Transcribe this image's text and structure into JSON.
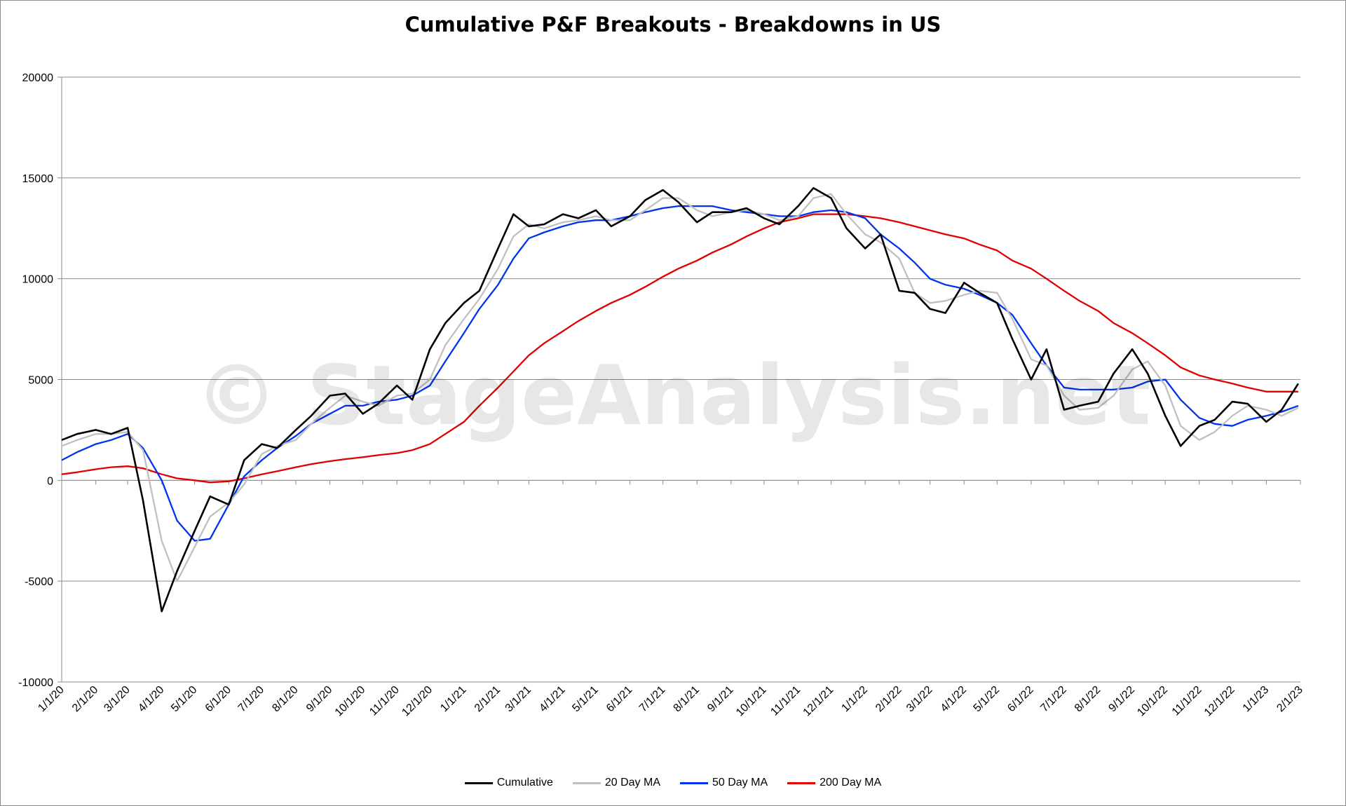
{
  "chart_data": {
    "type": "line",
    "title": "Cumulative P&F Breakouts - Breakdowns in US",
    "xlabel": "",
    "ylabel": "",
    "ylim": [
      -10000,
      20000
    ],
    "y_ticks": [
      -10000,
      -5000,
      0,
      5000,
      10000,
      15000,
      20000
    ],
    "y_tick_labels": [
      "-10000",
      "-5000",
      "0",
      "5000",
      "10000",
      "15000",
      "20000"
    ],
    "x_tick_labels": [
      "1/1/20",
      "2/1/20",
      "3/1/20",
      "4/1/20",
      "5/1/20",
      "6/1/20",
      "7/1/20",
      "8/1/20",
      "9/1/20",
      "10/1/20",
      "11/1/20",
      "12/1/20",
      "1/1/21",
      "2/1/21",
      "3/1/21",
      "4/1/21",
      "5/1/21",
      "6/1/21",
      "7/1/21",
      "8/1/21",
      "9/1/21",
      "10/1/21",
      "11/1/21",
      "12/1/21",
      "1/1/22",
      "2/1/22",
      "3/1/22",
      "4/1/22",
      "5/1/22",
      "6/1/22",
      "7/1/22",
      "8/1/22",
      "9/1/22",
      "10/1/22",
      "11/1/22",
      "12/1/22",
      "1/1/23",
      "2/1/23"
    ],
    "x": [
      "1/1/20",
      "1/15/20",
      "2/1/20",
      "2/15/20",
      "3/1/20",
      "3/15/20",
      "4/1/20",
      "4/15/20",
      "5/1/20",
      "5/15/20",
      "6/1/20",
      "6/15/20",
      "7/1/20",
      "7/15/20",
      "8/1/20",
      "8/15/20",
      "9/1/20",
      "9/15/20",
      "10/1/20",
      "10/15/20",
      "11/1/20",
      "11/15/20",
      "12/1/20",
      "12/15/20",
      "1/1/21",
      "1/15/21",
      "2/1/21",
      "2/15/21",
      "3/1/21",
      "3/15/21",
      "4/1/21",
      "4/15/21",
      "5/1/21",
      "5/15/21",
      "6/1/21",
      "6/15/21",
      "7/1/21",
      "7/15/21",
      "8/1/21",
      "8/15/21",
      "9/1/21",
      "9/15/21",
      "10/1/21",
      "10/15/21",
      "11/1/21",
      "11/15/21",
      "12/1/21",
      "12/15/21",
      "1/1/22",
      "1/15/22",
      "2/1/22",
      "2/15/22",
      "3/1/22",
      "3/15/22",
      "4/1/22",
      "4/15/22",
      "5/1/22",
      "5/15/22",
      "6/1/22",
      "6/15/22",
      "7/1/22",
      "7/15/22",
      "8/1/22",
      "8/15/22",
      "9/1/22",
      "9/15/22",
      "10/1/22",
      "10/15/22",
      "11/1/22",
      "11/15/22",
      "12/1/22",
      "12/15/22",
      "1/1/23",
      "1/15/23",
      "1/30/23"
    ],
    "series": [
      {
        "name": "Cumulative",
        "color": "#000000",
        "values": [
          2000,
          2300,
          2500,
          2300,
          2600,
          -1000,
          -6500,
          -4500,
          -2500,
          -800,
          -1200,
          1000,
          1800,
          1600,
          2500,
          3200,
          4200,
          4300,
          3300,
          3800,
          4700,
          4000,
          6500,
          7800,
          8800,
          9400,
          11500,
          13200,
          12600,
          12700,
          13200,
          13000,
          13400,
          12600,
          13100,
          13900,
          14400,
          13800,
          12800,
          13300,
          13300,
          13500,
          13000,
          12700,
          13600,
          14500,
          14000,
          12500,
          11500,
          12200,
          9400,
          9300,
          8500,
          8300,
          9800,
          9300,
          8800,
          7000,
          5000,
          6500,
          3500,
          3700,
          3900,
          5300,
          6500,
          5300,
          3200,
          1700,
          2700,
          3000,
          3900,
          3800,
          2900,
          3500,
          4800
        ]
      },
      {
        "name": "20 Day MA",
        "color": "#c0c0c0",
        "values": [
          1700,
          2000,
          2300,
          2300,
          2400,
          1500,
          -3000,
          -5000,
          -3300,
          -1800,
          -1100,
          -200,
          1300,
          1700,
          2000,
          2800,
          3600,
          4200,
          3900,
          3700,
          4200,
          4300,
          5000,
          6700,
          8000,
          9000,
          10500,
          12100,
          12700,
          12500,
          12800,
          12900,
          13100,
          12900,
          12900,
          13400,
          14000,
          14000,
          13400,
          13100,
          13300,
          13400,
          13200,
          12900,
          13100,
          14000,
          14200,
          13200,
          12200,
          11800,
          11000,
          9300,
          8800,
          8900,
          9200,
          9400,
          9300,
          8000,
          6000,
          5700,
          4200,
          3500,
          3600,
          4200,
          5500,
          5900,
          4700,
          2700,
          2000,
          2400,
          3200,
          3700,
          3500,
          3200,
          3600
        ]
      },
      {
        "name": "50 Day MA",
        "color": "#0033ee",
        "values": [
          1000,
          1400,
          1800,
          2000,
          2300,
          1600,
          0,
          -2000,
          -3000,
          -2900,
          -1200,
          200,
          1000,
          1600,
          2200,
          2800,
          3300,
          3700,
          3700,
          3900,
          4000,
          4200,
          4700,
          5900,
          7300,
          8500,
          9700,
          11000,
          12000,
          12300,
          12600,
          12800,
          12900,
          12900,
          13100,
          13300,
          13500,
          13600,
          13600,
          13600,
          13400,
          13300,
          13200,
          13100,
          13100,
          13300,
          13400,
          13300,
          13000,
          12200,
          11500,
          10800,
          10000,
          9700,
          9500,
          9200,
          8800,
          8200,
          6800,
          5700,
          4600,
          4500,
          4500,
          4500,
          4600,
          4900,
          5000,
          4000,
          3100,
          2800,
          2700,
          3000,
          3200,
          3400,
          3700
        ]
      },
      {
        "name": "200 Day MA",
        "color": "#e00000",
        "values": [
          300,
          400,
          550,
          650,
          700,
          600,
          300,
          100,
          0,
          -100,
          -50,
          100,
          300,
          450,
          650,
          800,
          950,
          1050,
          1150,
          1250,
          1350,
          1500,
          1800,
          2300,
          2900,
          3700,
          4600,
          5400,
          6200,
          6800,
          7400,
          7900,
          8400,
          8800,
          9200,
          9600,
          10100,
          10500,
          10900,
          11300,
          11700,
          12100,
          12500,
          12800,
          13000,
          13200,
          13200,
          13200,
          13100,
          13000,
          12800,
          12600,
          12400,
          12200,
          12000,
          11700,
          11400,
          10900,
          10500,
          10000,
          9400,
          8900,
          8400,
          7800,
          7300,
          6800,
          6200,
          5600,
          5200,
          5000,
          4800,
          4600,
          4400,
          4400,
          4400
        ]
      }
    ],
    "grid": true,
    "legend_position": "bottom",
    "annotations": [
      {
        "text": "© StageAnalysis.net"
      }
    ]
  }
}
